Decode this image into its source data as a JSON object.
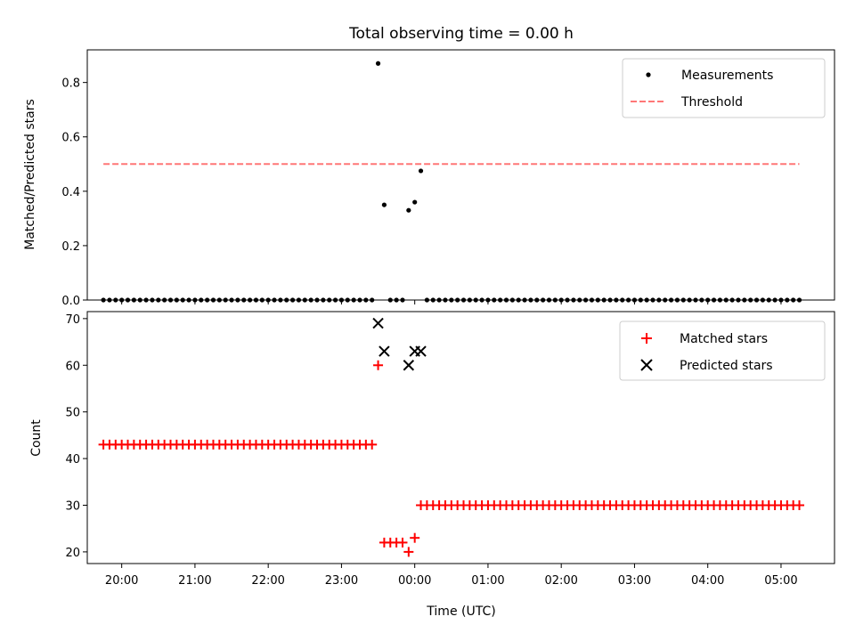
{
  "chart_data": [
    {
      "type": "scatter",
      "title": "Total observing time = 0.00 h",
      "xlabel": "",
      "ylabel": "Matched/Predicted stars",
      "ylim": [
        0.0,
        0.92
      ],
      "xlim_hours": [
        19.53,
        29.73
      ],
      "yticks": [
        "0.0",
        "0.2",
        "0.4",
        "0.6",
        "0.8"
      ],
      "x_tick_labels_shown": false,
      "legend": {
        "placement": "top-right",
        "entries": [
          "Measurements",
          "Threshold"
        ]
      },
      "series": [
        {
          "name": "Measurements",
          "color": "#000000",
          "marker": "dot",
          "points": [
            [
              "19:45",
              0
            ],
            [
              "19:50",
              0
            ],
            [
              "19:55",
              0
            ],
            [
              "20:00",
              0
            ],
            [
              "20:05",
              0
            ],
            [
              "20:10",
              0
            ],
            [
              "20:15",
              0
            ],
            [
              "20:20",
              0
            ],
            [
              "20:25",
              0
            ],
            [
              "20:30",
              0
            ],
            [
              "20:35",
              0
            ],
            [
              "20:40",
              0
            ],
            [
              "20:45",
              0
            ],
            [
              "20:50",
              0
            ],
            [
              "20:55",
              0
            ],
            [
              "21:00",
              0
            ],
            [
              "21:05",
              0
            ],
            [
              "21:10",
              0
            ],
            [
              "21:15",
              0
            ],
            [
              "21:20",
              0
            ],
            [
              "21:25",
              0
            ],
            [
              "21:30",
              0
            ],
            [
              "21:35",
              0
            ],
            [
              "21:40",
              0
            ],
            [
              "21:45",
              0
            ],
            [
              "21:50",
              0
            ],
            [
              "21:55",
              0
            ],
            [
              "22:00",
              0
            ],
            [
              "22:05",
              0
            ],
            [
              "22:10",
              0
            ],
            [
              "22:15",
              0
            ],
            [
              "22:20",
              0
            ],
            [
              "22:25",
              0
            ],
            [
              "22:30",
              0
            ],
            [
              "22:35",
              0
            ],
            [
              "22:40",
              0
            ],
            [
              "22:45",
              0
            ],
            [
              "22:50",
              0
            ],
            [
              "22:55",
              0
            ],
            [
              "23:00",
              0
            ],
            [
              "23:05",
              0
            ],
            [
              "23:10",
              0
            ],
            [
              "23:15",
              0
            ],
            [
              "23:20",
              0
            ],
            [
              "23:25",
              0
            ],
            [
              "23:30",
              0.87
            ],
            [
              "23:35",
              0.35
            ],
            [
              "23:40",
              0
            ],
            [
              "23:45",
              0
            ],
            [
              "23:50",
              0
            ],
            [
              "23:55",
              0.33
            ],
            [
              "00:00",
              0.36
            ],
            [
              "00:05",
              0.475
            ],
            [
              "00:10",
              0
            ],
            [
              "00:15",
              0
            ],
            [
              "00:20",
              0
            ],
            [
              "00:25",
              0
            ],
            [
              "00:30",
              0
            ],
            [
              "00:35",
              0
            ],
            [
              "00:40",
              0
            ],
            [
              "00:45",
              0
            ],
            [
              "00:50",
              0
            ],
            [
              "00:55",
              0
            ],
            [
              "01:00",
              0
            ],
            [
              "01:05",
              0
            ],
            [
              "01:10",
              0
            ],
            [
              "01:15",
              0
            ],
            [
              "01:20",
              0
            ],
            [
              "01:25",
              0
            ],
            [
              "01:30",
              0
            ],
            [
              "01:35",
              0
            ],
            [
              "01:40",
              0
            ],
            [
              "01:45",
              0
            ],
            [
              "01:50",
              0
            ],
            [
              "01:55",
              0
            ],
            [
              "02:00",
              0
            ],
            [
              "02:05",
              0
            ],
            [
              "02:10",
              0
            ],
            [
              "02:15",
              0
            ],
            [
              "02:20",
              0
            ],
            [
              "02:25",
              0
            ],
            [
              "02:30",
              0
            ],
            [
              "02:35",
              0
            ],
            [
              "02:40",
              0
            ],
            [
              "02:45",
              0
            ],
            [
              "02:50",
              0
            ],
            [
              "02:55",
              0
            ],
            [
              "03:00",
              0
            ],
            [
              "03:05",
              0
            ],
            [
              "03:10",
              0
            ],
            [
              "03:15",
              0
            ],
            [
              "03:20",
              0
            ],
            [
              "03:25",
              0
            ],
            [
              "03:30",
              0
            ],
            [
              "03:35",
              0
            ],
            [
              "03:40",
              0
            ],
            [
              "03:45",
              0
            ],
            [
              "03:50",
              0
            ],
            [
              "03:55",
              0
            ],
            [
              "04:00",
              0
            ],
            [
              "04:05",
              0
            ],
            [
              "04:10",
              0
            ],
            [
              "04:15",
              0
            ],
            [
              "04:20",
              0
            ],
            [
              "04:25",
              0
            ],
            [
              "04:30",
              0
            ],
            [
              "04:35",
              0
            ],
            [
              "04:40",
              0
            ],
            [
              "04:45",
              0
            ],
            [
              "04:50",
              0
            ],
            [
              "04:55",
              0
            ],
            [
              "05:00",
              0
            ],
            [
              "05:05",
              0
            ],
            [
              "05:10",
              0
            ],
            [
              "05:15",
              0
            ]
          ]
        },
        {
          "name": "Threshold",
          "color": "#ff7777",
          "style": "dashed-line",
          "points": [
            [
              "19:45",
              0.5
            ],
            [
              "05:15",
              0.5
            ]
          ]
        }
      ]
    },
    {
      "type": "scatter",
      "title": "",
      "xlabel": "Time (UTC)",
      "ylabel": "Count",
      "ylim": [
        17.5,
        71.5
      ],
      "xlim_hours": [
        19.53,
        29.73
      ],
      "yticks": [
        "20",
        "30",
        "40",
        "50",
        "60",
        "70"
      ],
      "xticks": [
        {
          "label": "20:00",
          "h": 20
        },
        {
          "label": "21:00",
          "h": 21
        },
        {
          "label": "22:00",
          "h": 22
        },
        {
          "label": "23:00",
          "h": 23
        },
        {
          "label": "00:00",
          "h": 24
        },
        {
          "label": "01:00",
          "h": 25
        },
        {
          "label": "02:00",
          "h": 26
        },
        {
          "label": "03:00",
          "h": 27
        },
        {
          "label": "04:00",
          "h": 28
        },
        {
          "label": "05:00",
          "h": 29
        }
      ],
      "legend": {
        "placement": "top-right",
        "entries": [
          "Matched stars",
          "Predicted stars"
        ]
      },
      "series": [
        {
          "name": "Matched stars",
          "color": "#ff0000",
          "marker": "plus",
          "points": [
            [
              "19:45",
              43
            ],
            [
              "19:50",
              43
            ],
            [
              "19:55",
              43
            ],
            [
              "20:00",
              43
            ],
            [
              "20:05",
              43
            ],
            [
              "20:10",
              43
            ],
            [
              "20:15",
              43
            ],
            [
              "20:20",
              43
            ],
            [
              "20:25",
              43
            ],
            [
              "20:30",
              43
            ],
            [
              "20:35",
              43
            ],
            [
              "20:40",
              43
            ],
            [
              "20:45",
              43
            ],
            [
              "20:50",
              43
            ],
            [
              "20:55",
              43
            ],
            [
              "21:00",
              43
            ],
            [
              "21:05",
              43
            ],
            [
              "21:10",
              43
            ],
            [
              "21:15",
              43
            ],
            [
              "21:20",
              43
            ],
            [
              "21:25",
              43
            ],
            [
              "21:30",
              43
            ],
            [
              "21:35",
              43
            ],
            [
              "21:40",
              43
            ],
            [
              "21:45",
              43
            ],
            [
              "21:50",
              43
            ],
            [
              "21:55",
              43
            ],
            [
              "22:00",
              43
            ],
            [
              "22:05",
              43
            ],
            [
              "22:10",
              43
            ],
            [
              "22:15",
              43
            ],
            [
              "22:20",
              43
            ],
            [
              "22:25",
              43
            ],
            [
              "22:30",
              43
            ],
            [
              "22:35",
              43
            ],
            [
              "22:40",
              43
            ],
            [
              "22:45",
              43
            ],
            [
              "22:50",
              43
            ],
            [
              "22:55",
              43
            ],
            [
              "23:00",
              43
            ],
            [
              "23:05",
              43
            ],
            [
              "23:10",
              43
            ],
            [
              "23:15",
              43
            ],
            [
              "23:20",
              43
            ],
            [
              "23:25",
              43
            ],
            [
              "23:30",
              60
            ],
            [
              "23:35",
              22
            ],
            [
              "23:40",
              22
            ],
            [
              "23:45",
              22
            ],
            [
              "23:50",
              22
            ],
            [
              "23:55",
              20
            ],
            [
              "00:00",
              23
            ],
            [
              "00:05",
              30
            ],
            [
              "00:10",
              30
            ],
            [
              "00:15",
              30
            ],
            [
              "00:20",
              30
            ],
            [
              "00:25",
              30
            ],
            [
              "00:30",
              30
            ],
            [
              "00:35",
              30
            ],
            [
              "00:40",
              30
            ],
            [
              "00:45",
              30
            ],
            [
              "00:50",
              30
            ],
            [
              "00:55",
              30
            ],
            [
              "01:00",
              30
            ],
            [
              "01:05",
              30
            ],
            [
              "01:10",
              30
            ],
            [
              "01:15",
              30
            ],
            [
              "01:20",
              30
            ],
            [
              "01:25",
              30
            ],
            [
              "01:30",
              30
            ],
            [
              "01:35",
              30
            ],
            [
              "01:40",
              30
            ],
            [
              "01:45",
              30
            ],
            [
              "01:50",
              30
            ],
            [
              "01:55",
              30
            ],
            [
              "02:00",
              30
            ],
            [
              "02:05",
              30
            ],
            [
              "02:10",
              30
            ],
            [
              "02:15",
              30
            ],
            [
              "02:20",
              30
            ],
            [
              "02:25",
              30
            ],
            [
              "02:30",
              30
            ],
            [
              "02:35",
              30
            ],
            [
              "02:40",
              30
            ],
            [
              "02:45",
              30
            ],
            [
              "02:50",
              30
            ],
            [
              "02:55",
              30
            ],
            [
              "03:00",
              30
            ],
            [
              "03:05",
              30
            ],
            [
              "03:10",
              30
            ],
            [
              "03:15",
              30
            ],
            [
              "03:20",
              30
            ],
            [
              "03:25",
              30
            ],
            [
              "03:30",
              30
            ],
            [
              "03:35",
              30
            ],
            [
              "03:40",
              30
            ],
            [
              "03:45",
              30
            ],
            [
              "03:50",
              30
            ],
            [
              "03:55",
              30
            ],
            [
              "04:00",
              30
            ],
            [
              "04:05",
              30
            ],
            [
              "04:10",
              30
            ],
            [
              "04:15",
              30
            ],
            [
              "04:20",
              30
            ],
            [
              "04:25",
              30
            ],
            [
              "04:30",
              30
            ],
            [
              "04:35",
              30
            ],
            [
              "04:40",
              30
            ],
            [
              "04:45",
              30
            ],
            [
              "04:50",
              30
            ],
            [
              "04:55",
              30
            ],
            [
              "05:00",
              30
            ],
            [
              "05:05",
              30
            ],
            [
              "05:10",
              30
            ],
            [
              "05:15",
              30
            ]
          ]
        },
        {
          "name": "Predicted stars",
          "color": "#000000",
          "marker": "x",
          "points": [
            [
              "23:30",
              69
            ],
            [
              "23:35",
              63
            ],
            [
              "23:55",
              60
            ],
            [
              "00:00",
              63
            ],
            [
              "00:05",
              63
            ]
          ]
        }
      ]
    }
  ]
}
